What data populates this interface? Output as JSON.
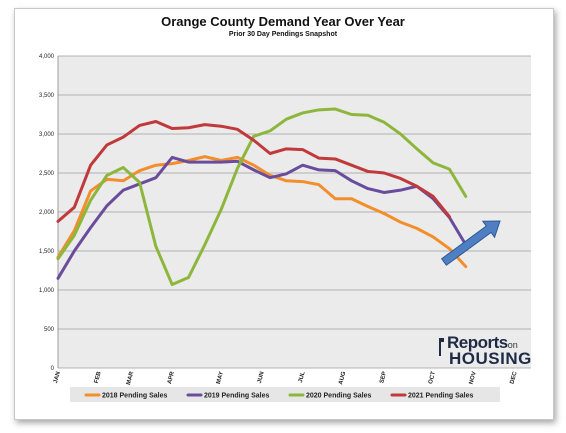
{
  "chart_data": {
    "type": "line",
    "title": "Orange County Demand Year Over Year",
    "subtitle": "Prior 30 Day Pendings Snapshot",
    "ylim": [
      0,
      4000
    ],
    "yticks": [
      "0",
      "500",
      "1,000",
      "1,500",
      "2,000",
      "2,500",
      "3,000",
      "3,500",
      "4,000"
    ],
    "ytick_values": [
      0,
      500,
      1000,
      1500,
      2000,
      2500,
      3000,
      3500,
      4000
    ],
    "month_labels": [
      "JAN",
      "FEB",
      "MAR",
      "APR",
      "MAY",
      "JUN",
      "JUL",
      "AUG",
      "SEP",
      "OCT",
      "NOV",
      "DEC"
    ],
    "month_positions": [
      0,
      2.5,
      4.5,
      7,
      10,
      12.5,
      15,
      17.5,
      20,
      23,
      25.5,
      28
    ],
    "x_max": 29,
    "grid": true,
    "legend_position": "bottom",
    "series": [
      {
        "name": "2018 Pending Sales",
        "color": "#F28E2B",
        "values": [
          1420,
          1760,
          2270,
          2420,
          2400,
          2530,
          2600,
          2620,
          2660,
          2710,
          2660,
          2700,
          2600,
          2470,
          2400,
          2390,
          2350,
          2170,
          2170,
          2070,
          1980,
          1870,
          1790,
          1680,
          1530,
          1300
        ]
      },
      {
        "name": "2019 Pending Sales",
        "color": "#6A4C9C",
        "values": [
          1150,
          1500,
          1800,
          2080,
          2280,
          2360,
          2440,
          2700,
          2640,
          2640,
          2640,
          2650,
          2540,
          2440,
          2490,
          2600,
          2540,
          2530,
          2400,
          2300,
          2250,
          2280,
          2330,
          2170,
          1930,
          1580
        ]
      },
      {
        "name": "2020 Pending Sales",
        "color": "#8DB63C",
        "values": [
          1400,
          1700,
          2150,
          2470,
          2570,
          2380,
          1560,
          1070,
          1160,
          1580,
          2030,
          2560,
          2970,
          3040,
          3190,
          3270,
          3310,
          3320,
          3250,
          3240,
          3150,
          3000,
          2810,
          2630,
          2550,
          2200
        ]
      },
      {
        "name": "2021 Pending Sales",
        "color": "#C0393B",
        "values": [
          1880,
          2060,
          2600,
          2860,
          2960,
          3110,
          3160,
          3070,
          3080,
          3120,
          3100,
          3060,
          2920,
          2750,
          2810,
          2800,
          2690,
          2680,
          2600,
          2520,
          2500,
          2430,
          2330,
          2200,
          1940
        ]
      }
    ],
    "annotation": "up-arrow"
  },
  "logo": {
    "top": "Reports",
    "on": "on",
    "bottom": "HOUSING"
  },
  "colors": {
    "plot_bg": "#EBEBEB",
    "grid": "#9E9E9E",
    "arrow": "#4F7FC2"
  }
}
